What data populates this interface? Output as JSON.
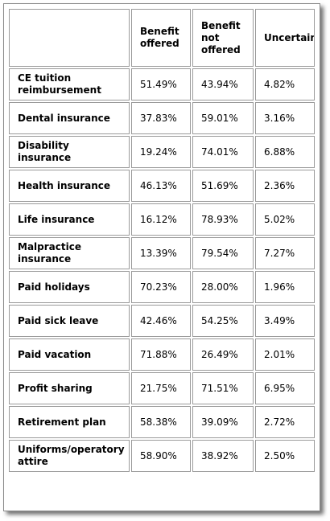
{
  "table": {
    "headers": [
      "",
      "Benefit offered",
      "Benefit not offered",
      "Uncertain"
    ],
    "rows": [
      {
        "label": "CE tuition reimbursement",
        "offered": "51.49%",
        "not_offered": "43.94%",
        "uncertain": "4.82%"
      },
      {
        "label": "Dental insurance",
        "offered": "37.83%",
        "not_offered": "59.01%",
        "uncertain": "3.16%"
      },
      {
        "label": "Disability insurance",
        "offered": "19.24%",
        "not_offered": "74.01%",
        "uncertain": "6.88%"
      },
      {
        "label": "Health insurance",
        "offered": "46.13%",
        "not_offered": "51.69%",
        "uncertain": "2.36%"
      },
      {
        "label": "Life insurance",
        "offered": "16.12%",
        "not_offered": "78.93%",
        "uncertain": "5.02%"
      },
      {
        "label": "Malpractice insurance",
        "offered": "13.39%",
        "not_offered": "79.54%",
        "uncertain": "7.27%"
      },
      {
        "label": "Paid holidays",
        "offered": "70.23%",
        "not_offered": "28.00%",
        "uncertain": "1.96%"
      },
      {
        "label": "Paid sick leave",
        "offered": "42.46%",
        "not_offered": "54.25%",
        "uncertain": "3.49%"
      },
      {
        "label": "Paid vacation",
        "offered": "71.88%",
        "not_offered": "26.49%",
        "uncertain": "2.01%"
      },
      {
        "label": "Profit sharing",
        "offered": "21.75%",
        "not_offered": "71.51%",
        "uncertain": "6.95%"
      },
      {
        "label": "Retirement plan",
        "offered": "58.38%",
        "not_offered": "39.09%",
        "uncertain": "2.72%"
      },
      {
        "label": "Uniforms/operatory attire",
        "offered": "58.90%",
        "not_offered": "38.92%",
        "uncertain": "2.50%"
      }
    ]
  }
}
